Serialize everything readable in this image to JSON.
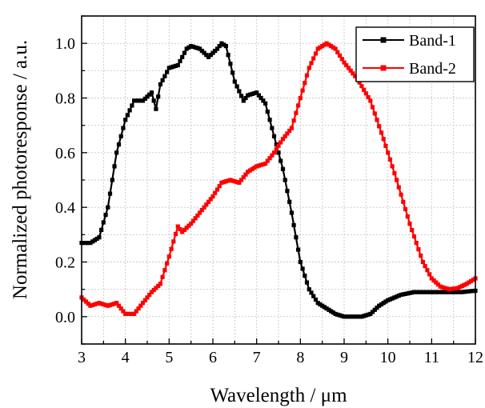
{
  "chart_data": {
    "type": "line",
    "xlabel": "Wavelength / μm",
    "ylabel": "Normalized photoresponse / a.u.",
    "xlim": [
      3,
      12
    ],
    "ylim": [
      -0.1,
      1.1
    ],
    "xticks": [
      3,
      4,
      5,
      6,
      7,
      8,
      9,
      10,
      11,
      12
    ],
    "yticks": [
      0.0,
      0.2,
      0.4,
      0.6,
      0.8,
      1.0
    ],
    "xtick_labels": [
      "3",
      "4",
      "5",
      "6",
      "7",
      "8",
      "9",
      "10",
      "11",
      "12"
    ],
    "ytick_labels": [
      "0.0",
      "0.2",
      "0.4",
      "0.6",
      "0.8",
      "1.0"
    ],
    "grid": true,
    "legend_position": "top-right",
    "series": [
      {
        "name": "Band-1",
        "color": "#000000",
        "marker": "square",
        "points": [
          [
            3.0,
            0.27
          ],
          [
            3.2,
            0.27
          ],
          [
            3.4,
            0.29
          ],
          [
            3.6,
            0.4
          ],
          [
            3.8,
            0.6
          ],
          [
            4.0,
            0.72
          ],
          [
            4.2,
            0.79
          ],
          [
            4.4,
            0.79
          ],
          [
            4.6,
            0.82
          ],
          [
            4.7,
            0.76
          ],
          [
            4.8,
            0.85
          ],
          [
            5.0,
            0.91
          ],
          [
            5.2,
            0.92
          ],
          [
            5.4,
            0.98
          ],
          [
            5.5,
            0.99
          ],
          [
            5.7,
            0.98
          ],
          [
            5.9,
            0.95
          ],
          [
            6.1,
            0.98
          ],
          [
            6.2,
            1.0
          ],
          [
            6.3,
            0.99
          ],
          [
            6.5,
            0.86
          ],
          [
            6.7,
            0.79
          ],
          [
            6.8,
            0.81
          ],
          [
            7.0,
            0.82
          ],
          [
            7.2,
            0.78
          ],
          [
            7.4,
            0.66
          ],
          [
            7.6,
            0.54
          ],
          [
            7.8,
            0.38
          ],
          [
            8.0,
            0.2
          ],
          [
            8.2,
            0.1
          ],
          [
            8.4,
            0.05
          ],
          [
            8.6,
            0.03
          ],
          [
            8.8,
            0.01
          ],
          [
            9.0,
            0.0
          ],
          [
            9.2,
            0.0
          ],
          [
            9.4,
            0.0
          ],
          [
            9.6,
            0.01
          ],
          [
            9.8,
            0.04
          ],
          [
            10.0,
            0.06
          ],
          [
            10.3,
            0.08
          ],
          [
            10.6,
            0.09
          ],
          [
            11.0,
            0.09
          ],
          [
            11.4,
            0.09
          ],
          [
            11.7,
            0.09
          ],
          [
            12.0,
            0.095
          ]
        ]
      },
      {
        "name": "Band-2",
        "color": "#ff0000",
        "marker": "square",
        "points": [
          [
            3.0,
            0.07
          ],
          [
            3.2,
            0.04
          ],
          [
            3.4,
            0.05
          ],
          [
            3.6,
            0.04
          ],
          [
            3.8,
            0.05
          ],
          [
            4.0,
            0.01
          ],
          [
            4.2,
            0.01
          ],
          [
            4.4,
            0.05
          ],
          [
            4.6,
            0.09
          ],
          [
            4.8,
            0.12
          ],
          [
            5.0,
            0.22
          ],
          [
            5.2,
            0.33
          ],
          [
            5.3,
            0.31
          ],
          [
            5.5,
            0.34
          ],
          [
            5.8,
            0.4
          ],
          [
            6.0,
            0.44
          ],
          [
            6.2,
            0.49
          ],
          [
            6.4,
            0.5
          ],
          [
            6.6,
            0.49
          ],
          [
            6.8,
            0.53
          ],
          [
            7.0,
            0.55
          ],
          [
            7.2,
            0.56
          ],
          [
            7.4,
            0.6
          ],
          [
            7.6,
            0.65
          ],
          [
            7.8,
            0.69
          ],
          [
            8.0,
            0.8
          ],
          [
            8.2,
            0.91
          ],
          [
            8.4,
            0.98
          ],
          [
            8.6,
            1.0
          ],
          [
            8.8,
            0.98
          ],
          [
            9.0,
            0.93
          ],
          [
            9.3,
            0.87
          ],
          [
            9.6,
            0.79
          ],
          [
            9.9,
            0.65
          ],
          [
            10.2,
            0.5
          ],
          [
            10.5,
            0.34
          ],
          [
            10.8,
            0.2
          ],
          [
            11.0,
            0.14
          ],
          [
            11.2,
            0.11
          ],
          [
            11.4,
            0.1
          ],
          [
            11.6,
            0.105
          ],
          [
            11.8,
            0.12
          ],
          [
            12.0,
            0.14
          ]
        ]
      }
    ]
  }
}
